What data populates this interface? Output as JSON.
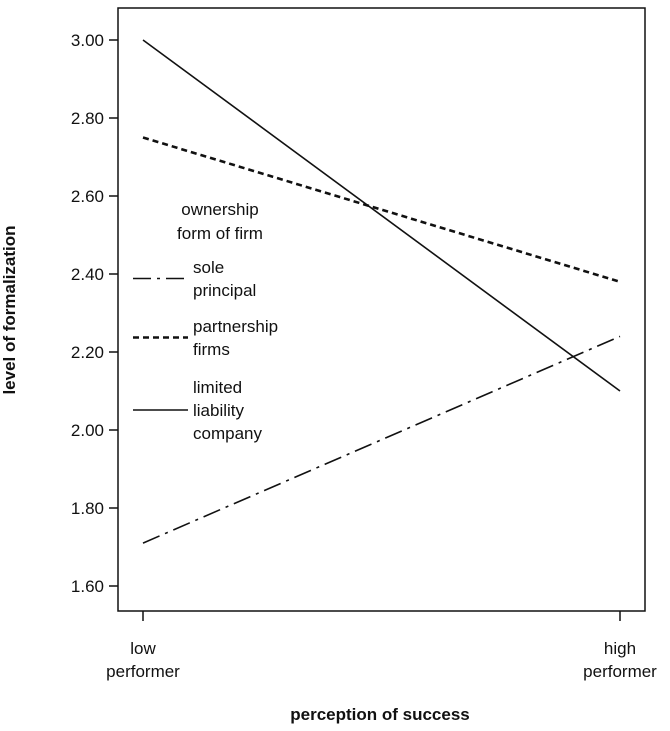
{
  "chart_data": {
    "type": "line",
    "xlabel": "perception of success",
    "ylabel": "level of formalization",
    "categories": [
      [
        "low",
        "performer"
      ],
      [
        "high",
        "performer"
      ]
    ],
    "ylim": [
      1.55,
      3.05
    ],
    "yticks": [
      "1.60",
      "1.80",
      "2.00",
      "2.20",
      "2.40",
      "2.60",
      "2.80",
      "3.00"
    ],
    "ytick_values": [
      1.6,
      1.8,
      2.0,
      2.2,
      2.4,
      2.6,
      2.8,
      3.0
    ],
    "grid": false,
    "legend": {
      "title": [
        "ownership",
        "form of firm"
      ],
      "placement": "center-left"
    },
    "series": [
      {
        "name": [
          "sole",
          "principal"
        ],
        "values": [
          1.71,
          2.24
        ],
        "dash": "dashdot"
      },
      {
        "name": [
          "partnership",
          "firms"
        ],
        "values": [
          2.75,
          2.38
        ],
        "dash": "dotted"
      },
      {
        "name": [
          "limited",
          "liability",
          "company"
        ],
        "values": [
          3.0,
          2.1
        ],
        "dash": "solid"
      }
    ]
  }
}
